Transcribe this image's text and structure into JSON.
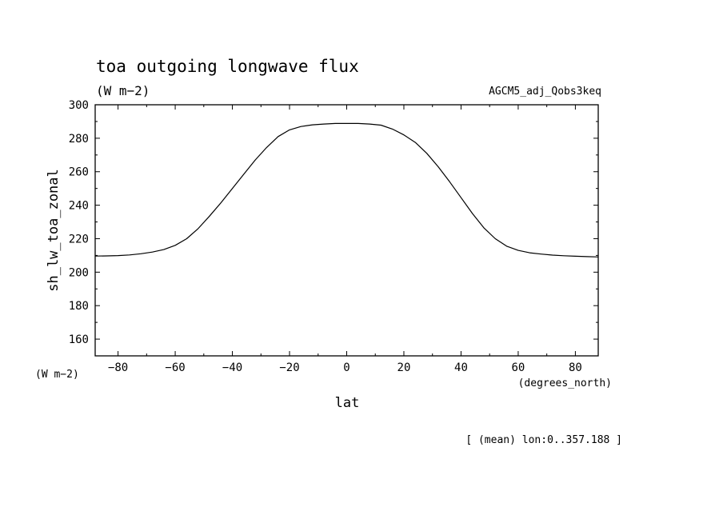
{
  "chart_data": {
    "type": "line",
    "title": "toa outgoing longwave flux",
    "units": "(W m−2)",
    "experiment": "AGCM5_adj_Qobs3keq",
    "xlabel": "lat",
    "ylabel": "sh_lw_toa_zonal",
    "x_units": "(degrees_north)",
    "y_units": "(W m−2)",
    "footnote": "[ (mean) lon:0..357.188 ]",
    "xlim": [
      -88,
      88
    ],
    "ylim": [
      150,
      300
    ],
    "xticks": [
      -80,
      -60,
      -40,
      -20,
      0,
      20,
      40,
      60,
      80
    ],
    "xtick_labels": [
      "−80",
      "−60",
      "−40",
      "−20",
      "0",
      "20",
      "40",
      "60",
      "80"
    ],
    "yticks": [
      160,
      180,
      200,
      220,
      240,
      260,
      280,
      300
    ],
    "ytick_labels": [
      "160",
      "180",
      "200",
      "220",
      "240",
      "260",
      "280",
      "300"
    ],
    "grid": false,
    "series": [
      {
        "x": [
          -88,
          -84,
          -80,
          -76,
          -72,
          -68,
          -64,
          -60,
          -56,
          -52,
          -48,
          -44,
          -40,
          -36,
          -32,
          -28,
          -24,
          -20,
          -16,
          -12,
          -8,
          -4,
          0,
          4,
          8,
          12,
          16,
          20,
          24,
          28,
          32,
          36,
          40,
          44,
          48,
          52,
          56,
          60,
          64,
          68,
          72,
          76,
          80,
          84,
          88
        ],
        "values": [
          209.6,
          209.7,
          209.9,
          210.3,
          211.0,
          212.0,
          213.5,
          216.0,
          220.0,
          226.0,
          233.5,
          241.5,
          250.0,
          258.5,
          267.0,
          274.5,
          281.0,
          285.0,
          287.0,
          288.0,
          288.5,
          288.8,
          288.8,
          288.8,
          288.5,
          287.8,
          285.5,
          282.0,
          277.5,
          271.0,
          263.0,
          254.0,
          244.5,
          235.0,
          226.5,
          220.0,
          215.5,
          213.0,
          211.6,
          210.8,
          210.2,
          209.8,
          209.5,
          209.3,
          209.1
        ],
        "color": "#000000"
      }
    ]
  }
}
